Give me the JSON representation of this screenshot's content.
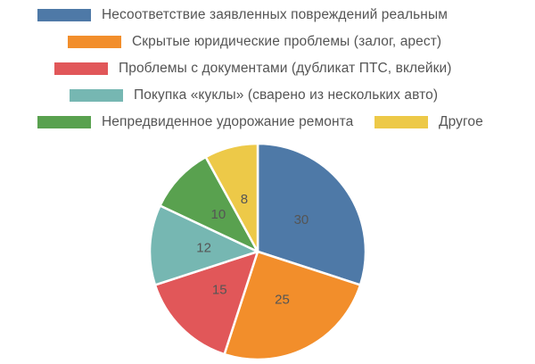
{
  "chart_data": {
    "type": "pie",
    "title": "",
    "legend_position": "top",
    "series": [
      {
        "name": "Несоответствие заявленных повреждений реальным",
        "value": 30,
        "color": "#4e79a7"
      },
      {
        "name": "Скрытые юридические проблемы (залог, арест)",
        "value": 25,
        "color": "#f28e2b"
      },
      {
        "name": "Проблемы с документами (дубликат ПТС, вклейки)",
        "value": 15,
        "color": "#e15759"
      },
      {
        "name": "Покупка «куклы» (сварено из нескольких авто)",
        "value": 12,
        "color": "#76b7b2"
      },
      {
        "name": "Непредвиденное удорожание ремонта",
        "value": 10,
        "color": "#59a14f"
      },
      {
        "name": "Другое",
        "value": 8,
        "color": "#edc948"
      }
    ]
  }
}
